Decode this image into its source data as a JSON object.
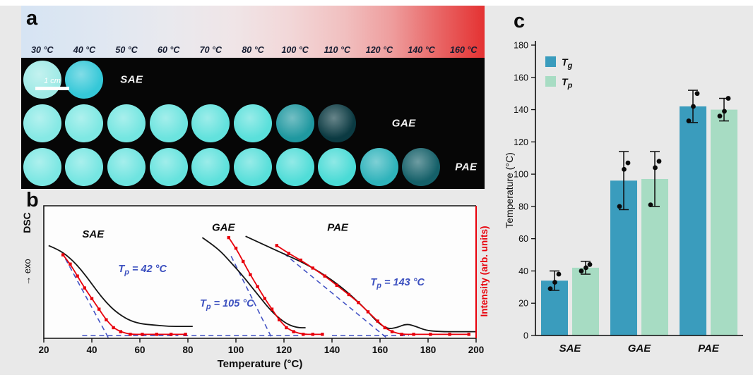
{
  "figure": {
    "background": "#e9e9e9"
  },
  "panel_a": {
    "label": "a",
    "temperatures": [
      "30 °C",
      "40 °C",
      "50 °C",
      "60 °C",
      "70 °C",
      "80 °C",
      "100 °C",
      "110 °C",
      "120 °C",
      "140 °C",
      "160 °C"
    ],
    "scale_bar_label": "1 cm",
    "rows": [
      {
        "label": "SAE",
        "label_col": 2.35,
        "disc_colors": [
          "#9feae6",
          "#35c8d8"
        ]
      },
      {
        "label": "GAE",
        "label_col": 8.8,
        "disc_colors": [
          "#86e9e5",
          "#7ee8e3",
          "#74e6e1",
          "#6ce4df",
          "#62e2dd",
          "#5ae0db",
          "#1f98a0",
          "#0b3a42"
        ]
      },
      {
        "label": "PAE",
        "label_col": 10.3,
        "disc_colors": [
          "#7ce7e3",
          "#76e6e2",
          "#6ee4e0",
          "#66e3de",
          "#5ee1dc",
          "#58dfda",
          "#50ddd8",
          "#4adbd6",
          "#2fb3bb",
          "#156069"
        ]
      }
    ]
  },
  "panel_b": {
    "label": "b"
  },
  "panel_c": {
    "label": "c"
  },
  "chart_data": [
    {
      "type": "line",
      "panel": "b",
      "xlabel": "Temperature (°C)",
      "ylabel_dsc": "DSC",
      "ylabel_exo": "→ exo",
      "ylabel_right": "Intensity (arb. units)",
      "xlim": [
        20,
        200
      ],
      "x_ticks": [
        20,
        40,
        60,
        80,
        100,
        120,
        140,
        160,
        180,
        200
      ],
      "guide_color": "#4353c4",
      "series": [
        {
          "name": "SAE DSC",
          "color": "#141414",
          "markers": false,
          "points": [
            [
              22,
              70
            ],
            [
              26,
              67
            ],
            [
              30,
              62
            ],
            [
              34,
              55
            ],
            [
              38,
              46
            ],
            [
              42,
              36
            ],
            [
              46,
              27
            ],
            [
              50,
              20
            ],
            [
              55,
              14
            ],
            [
              60,
              11
            ],
            [
              66,
              10
            ],
            [
              72,
              9
            ],
            [
              78,
              9
            ],
            [
              82,
              9
            ]
          ]
        },
        {
          "name": "GAE DSC",
          "color": "#141414",
          "markers": false,
          "points": [
            [
              86,
              76
            ],
            [
              90,
              71
            ],
            [
              94,
              65
            ],
            [
              98,
              57
            ],
            [
              102,
              49
            ],
            [
              106,
              40
            ],
            [
              110,
              31
            ],
            [
              114,
              22
            ],
            [
              118,
              15
            ],
            [
              122,
              10
            ],
            [
              126,
              8
            ],
            [
              129,
              8
            ]
          ]
        },
        {
          "name": "PAE DSC",
          "color": "#141414",
          "markers": false,
          "points": [
            [
              104,
              77
            ],
            [
              110,
              72
            ],
            [
              116,
              67
            ],
            [
              122,
              62
            ],
            [
              128,
              57
            ],
            [
              134,
              51
            ],
            [
              140,
              44
            ],
            [
              145,
              37
            ],
            [
              150,
              29
            ],
            [
              155,
              20
            ],
            [
              159,
              12
            ],
            [
              163,
              7
            ],
            [
              167,
              8
            ],
            [
              171,
              11
            ],
            [
              175,
              9
            ],
            [
              179,
              6
            ],
            [
              185,
              5
            ],
            [
              192,
              5
            ],
            [
              200,
              5
            ]
          ]
        },
        {
          "name": "SAE intensity",
          "color": "#e8000b",
          "markers": true,
          "points": [
            [
              28,
              63
            ],
            [
              31,
              56
            ],
            [
              34,
              47
            ],
            [
              37,
              38
            ],
            [
              40,
              30
            ],
            [
              43,
              22
            ],
            [
              46,
              14
            ],
            [
              49,
              8
            ],
            [
              52,
              5
            ],
            [
              56,
              3
            ],
            [
              61,
              3
            ],
            [
              67,
              3
            ],
            [
              73,
              3
            ],
            [
              79,
              3
            ]
          ]
        },
        {
          "name": "GAE intensity",
          "color": "#e8000b",
          "markers": true,
          "points": [
            [
              97,
              76
            ],
            [
              100,
              68
            ],
            [
              103,
              58
            ],
            [
              106,
              48
            ],
            [
              109,
              39
            ],
            [
              112,
              30
            ],
            [
              115,
              22
            ],
            [
              118,
              14
            ],
            [
              121,
              8
            ],
            [
              124,
              5
            ],
            [
              128,
              3
            ],
            [
              132,
              3
            ],
            [
              136,
              3
            ]
          ]
        },
        {
          "name": "PAE intensity",
          "color": "#e8000b",
          "markers": true,
          "points": [
            [
              117,
              70
            ],
            [
              122,
              64
            ],
            [
              127,
              59
            ],
            [
              132,
              53
            ],
            [
              137,
              47
            ],
            [
              142,
              40
            ],
            [
              147,
              33
            ],
            [
              151,
              27
            ],
            [
              155,
              20
            ],
            [
              159,
              13
            ],
            [
              162,
              8
            ],
            [
              165,
              5
            ],
            [
              169,
              3
            ],
            [
              174,
              3
            ],
            [
              181,
              3
            ],
            [
              189,
              3
            ],
            [
              197,
              3
            ]
          ]
        }
      ],
      "dashed_guides": [
        [
          29,
          60,
          47,
          0
        ],
        [
          36,
          2,
          76,
          2
        ],
        [
          98,
          62,
          115,
          0
        ],
        [
          78,
          2,
          126,
          2
        ],
        [
          120,
          64,
          163,
          0
        ],
        [
          140,
          2,
          172,
          2
        ]
      ],
      "sample_labels": [
        {
          "text": "SAE",
          "T": 36,
          "v": 76
        },
        {
          "text": "GAE",
          "T": 90,
          "v": 81
        },
        {
          "text": "PAE",
          "T": 138,
          "v": 81
        }
      ],
      "annotations": [
        {
          "pre": "T",
          "sub": "p",
          "post": " = 42 °C",
          "T": 51,
          "v": 50
        },
        {
          "pre": "T",
          "sub": "p",
          "post": " = 105 °C",
          "T": 85,
          "v": 24
        },
        {
          "pre": "T",
          "sub": "p",
          "post": " = 143 °C",
          "T": 156,
          "v": 40
        }
      ]
    },
    {
      "type": "bar",
      "panel": "c",
      "ylabel": "Temperature (°C)",
      "ylim": [
        0,
        180
      ],
      "y_ticks": [
        0,
        20,
        40,
        60,
        80,
        100,
        120,
        140,
        160,
        180
      ],
      "categories": [
        "SAE",
        "GAE",
        "PAE"
      ],
      "legend_position": "top-left",
      "series": [
        {
          "name_pre": "T",
          "name_sub": "g",
          "color": "#3a9cbd",
          "values": [
            34,
            96,
            142
          ],
          "errors": [
            6,
            18,
            10
          ],
          "points": [
            [
              29,
              33,
              38
            ],
            [
              80,
              103,
              107
            ],
            [
              133,
              142,
              150
            ]
          ]
        },
        {
          "name_pre": "T",
          "name_sub": "p",
          "color": "#a7dcc3",
          "values": [
            42,
            97,
            140
          ],
          "errors": [
            4,
            17,
            7
          ],
          "points": [
            [
              40,
              42,
              44
            ],
            [
              81,
              104,
              108
            ],
            [
              136,
              139,
              147
            ]
          ]
        }
      ]
    }
  ]
}
